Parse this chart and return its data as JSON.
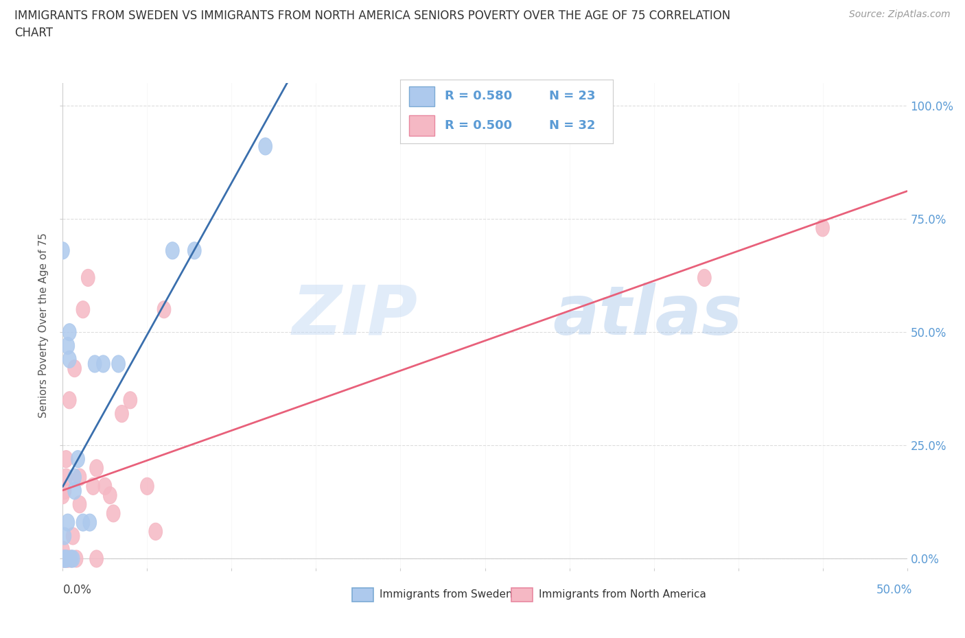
{
  "title_line1": "IMMIGRANTS FROM SWEDEN VS IMMIGRANTS FROM NORTH AMERICA SENIORS POVERTY OVER THE AGE OF 75 CORRELATION",
  "title_line2": "CHART",
  "source": "Source: ZipAtlas.com",
  "ylabel": "Seniors Poverty Over the Age of 75",
  "sweden_color": "#adc9ed",
  "sweden_edge_color": "#7baad4",
  "sweden_line_color": "#3a6fad",
  "na_color": "#f5b8c4",
  "na_edge_color": "#e888a0",
  "na_line_color": "#e8607a",
  "sweden_R": 0.58,
  "sweden_N": 23,
  "na_R": 0.5,
  "na_N": 32,
  "legend_label_sweden": "Immigrants from Sweden",
  "legend_label_na": "Immigrants from North America",
  "sweden_x": [
    0.0,
    0.001,
    0.001,
    0.002,
    0.002,
    0.003,
    0.003,
    0.004,
    0.004,
    0.005,
    0.006,
    0.007,
    0.007,
    0.009,
    0.012,
    0.016,
    0.019,
    0.024,
    0.033,
    0.065,
    0.078,
    0.12,
    0.001
  ],
  "sweden_y": [
    0.68,
    0.0,
    0.0,
    0.0,
    0.0,
    0.08,
    0.47,
    0.5,
    0.44,
    0.0,
    0.0,
    0.15,
    0.18,
    0.22,
    0.08,
    0.08,
    0.43,
    0.43,
    0.43,
    0.68,
    0.68,
    0.91,
    0.05
  ],
  "na_x": [
    0.0,
    0.0,
    0.0,
    0.001,
    0.001,
    0.001,
    0.002,
    0.002,
    0.003,
    0.003,
    0.004,
    0.005,
    0.006,
    0.007,
    0.008,
    0.01,
    0.01,
    0.012,
    0.015,
    0.018,
    0.02,
    0.02,
    0.025,
    0.028,
    0.03,
    0.035,
    0.04,
    0.05,
    0.055,
    0.06,
    0.38,
    0.45
  ],
  "na_y": [
    0.0,
    0.02,
    0.14,
    0.0,
    0.0,
    0.15,
    0.18,
    0.22,
    0.0,
    0.0,
    0.35,
    0.0,
    0.05,
    0.42,
    0.0,
    0.12,
    0.18,
    0.55,
    0.62,
    0.16,
    0.0,
    0.2,
    0.16,
    0.14,
    0.1,
    0.32,
    0.35,
    0.16,
    0.06,
    0.55,
    0.62,
    0.73
  ],
  "xlim": [
    0.0,
    0.5
  ],
  "ylim": [
    -0.02,
    1.05
  ],
  "yticks": [
    0.0,
    0.25,
    0.5,
    0.75,
    1.0
  ],
  "ytick_labels": [
    "0.0%",
    "25.0%",
    "50.0%",
    "75.0%",
    "100.0%"
  ],
  "background_color": "#ffffff",
  "grid_color": "#dddddd",
  "right_tick_color": "#5b9bd5"
}
